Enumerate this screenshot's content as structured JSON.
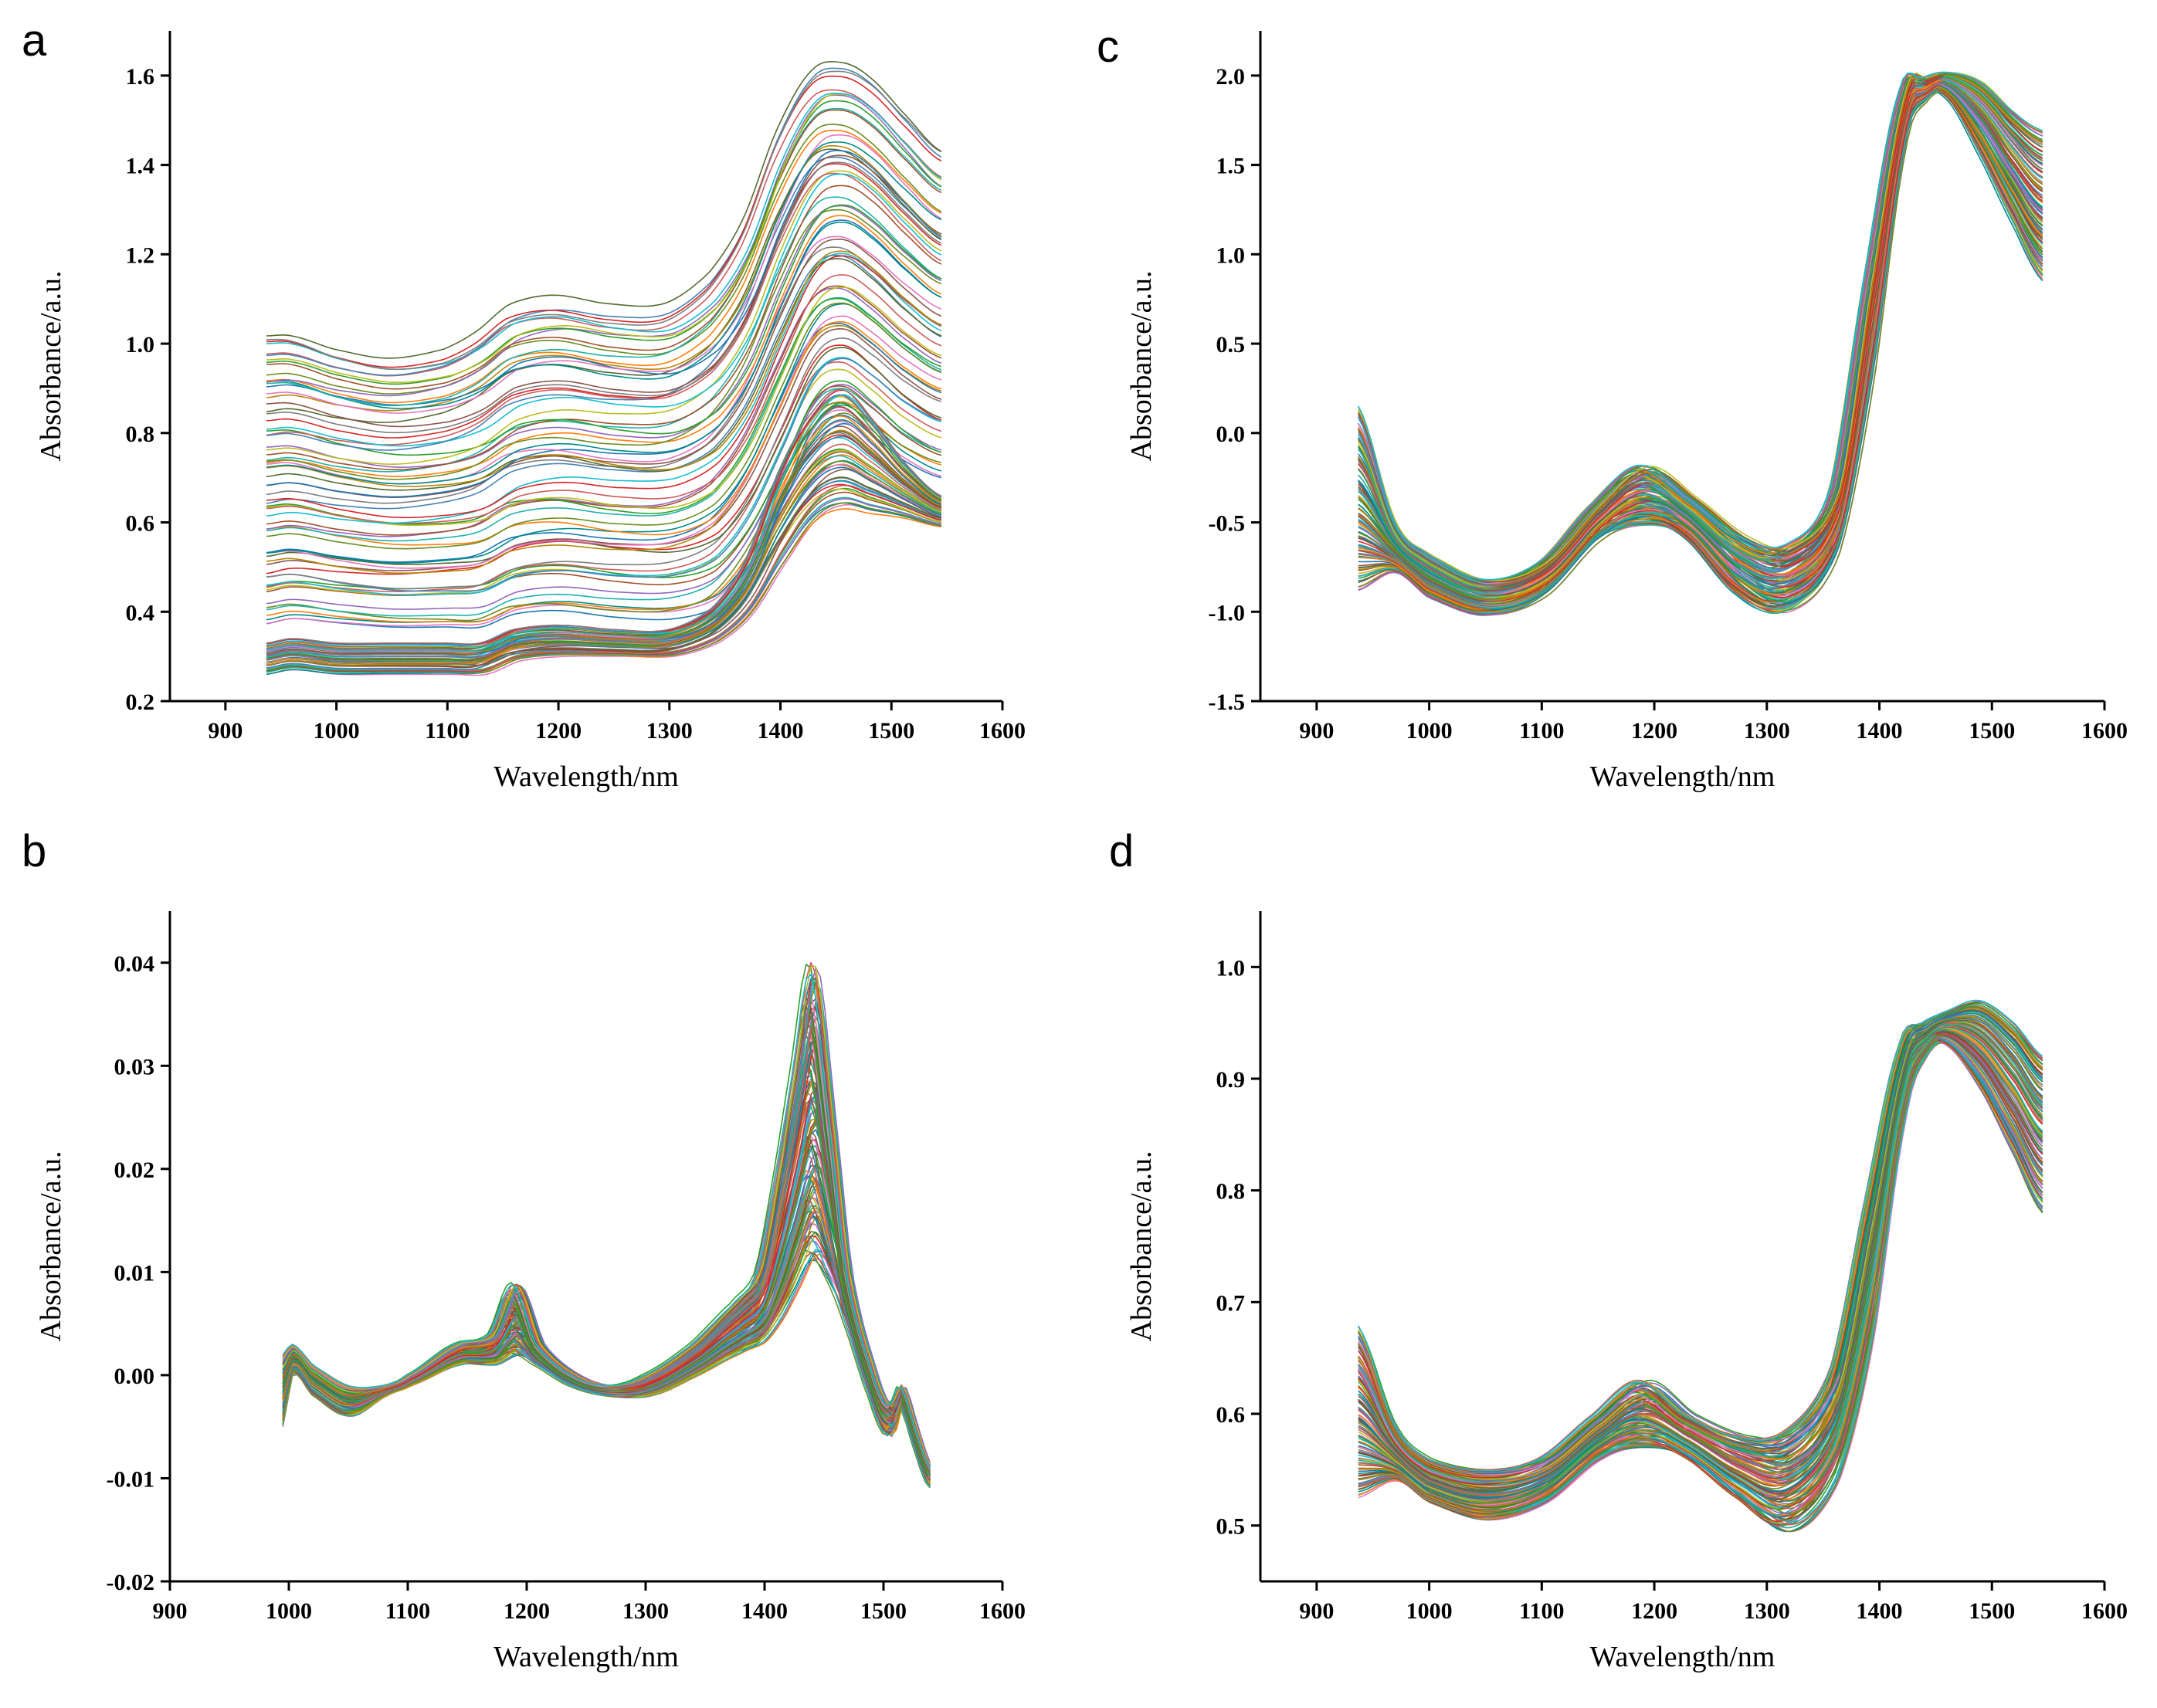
{
  "palette": [
    "#1f77b4",
    "#d62728",
    "#2ca02c",
    "#ff7f0e",
    "#8c564b",
    "#17becf",
    "#9467bd",
    "#e377c2",
    "#7f7f7f",
    "#bcbd22",
    "#6b8e23",
    "#b8860b",
    "#4682b4",
    "#a0522d",
    "#008b8b",
    "#556b2f",
    "#cd5c5c",
    "#20b2aa"
  ],
  "chart_data": [
    {
      "id": "a",
      "panel_label": "a",
      "type": "line",
      "xlabel": "Wavelength/nm",
      "ylabel": "Absorbance/a.u.",
      "xlim": [
        850,
        1600
      ],
      "ylim": [
        0.2,
        1.7
      ],
      "xticks": [
        900,
        1000,
        1100,
        1200,
        1300,
        1400,
        1500,
        1600
      ],
      "yticks": [
        0.2,
        0.4,
        0.6,
        0.8,
        1.0,
        1.2,
        1.4,
        1.6
      ],
      "ytick_labels": [
        "0.2",
        "0.4",
        "0.6",
        "0.8",
        "1.0",
        "1.2",
        "1.4",
        "1.6"
      ],
      "x_range": [
        937,
        1545
      ],
      "spectrum_count": 120,
      "series_groups": [
        {
          "count": 70,
          "anchor_x": [
            937,
            960,
            1000,
            1050,
            1100,
            1130,
            1160,
            1200,
            1250,
            1300,
            1340,
            1370,
            1400,
            1430,
            1455,
            1480,
            1510,
            1545
          ],
          "min_values": [
            0.36,
            0.37,
            0.36,
            0.35,
            0.35,
            0.35,
            0.38,
            0.39,
            0.38,
            0.38,
            0.41,
            0.5,
            0.64,
            0.8,
            0.84,
            0.8,
            0.74,
            0.7
          ],
          "max_values": [
            1.02,
            1.02,
            0.99,
            0.97,
            0.99,
            1.03,
            1.09,
            1.11,
            1.09,
            1.09,
            1.16,
            1.28,
            1.48,
            1.61,
            1.63,
            1.6,
            1.52,
            1.43
          ]
        },
        {
          "count": 50,
          "anchor_x": [
            937,
            960,
            1000,
            1050,
            1100,
            1130,
            1160,
            1200,
            1250,
            1300,
            1340,
            1370,
            1400,
            1430,
            1455,
            1480,
            1510,
            1545
          ],
          "min_values": [
            0.26,
            0.27,
            0.26,
            0.26,
            0.26,
            0.26,
            0.29,
            0.3,
            0.3,
            0.3,
            0.33,
            0.39,
            0.5,
            0.6,
            0.63,
            0.62,
            0.61,
            0.59
          ],
          "max_values": [
            0.33,
            0.34,
            0.33,
            0.33,
            0.33,
            0.33,
            0.36,
            0.37,
            0.36,
            0.36,
            0.41,
            0.52,
            0.72,
            0.85,
            0.9,
            0.84,
            0.74,
            0.66
          ]
        }
      ]
    },
    {
      "id": "b",
      "panel_label": "b",
      "type": "line",
      "xlabel": "Wavelength/nm",
      "ylabel": "Absorbance/a.u.",
      "xlim": [
        900,
        1600
      ],
      "ylim": [
        -0.02,
        0.045
      ],
      "xticks": [
        900,
        1000,
        1100,
        1200,
        1300,
        1400,
        1500,
        1600
      ],
      "yticks": [
        -0.02,
        -0.01,
        0.0,
        0.01,
        0.02,
        0.03,
        0.04
      ],
      "ytick_labels": [
        "-0.02",
        "-0.01",
        "0.00",
        "0.01",
        "0.02",
        "0.03",
        "0.04"
      ],
      "x_range": [
        995,
        1540
      ],
      "spectrum_count": 120,
      "series_groups": [
        {
          "count": 120,
          "anchor_x": [
            995,
            1003,
            1020,
            1050,
            1080,
            1100,
            1140,
            1170,
            1190,
            1210,
            1240,
            1270,
            1300,
            1340,
            1375,
            1395,
            1410,
            1425,
            1440,
            1455,
            1470,
            1490,
            1505,
            1515,
            1530,
            1540
          ],
          "min_values": [
            -0.005,
            0.0,
            -0.002,
            -0.004,
            -0.002,
            -0.001,
            0.001,
            0.001,
            0.002,
            0.001,
            -0.001,
            -0.002,
            -0.002,
            0.0,
            0.002,
            0.003,
            0.005,
            0.008,
            0.011,
            0.009,
            0.005,
            -0.002,
            -0.006,
            -0.003,
            -0.008,
            -0.011
          ],
          "max_values": [
            0.002,
            0.003,
            0.001,
            -0.001,
            -0.001,
            0.0,
            0.003,
            0.004,
            0.009,
            0.003,
            0.0,
            -0.001,
            0.0,
            0.003,
            0.007,
            0.01,
            0.019,
            0.03,
            0.04,
            0.026,
            0.01,
            0.001,
            -0.003,
            -0.001,
            -0.006,
            -0.009
          ]
        }
      ]
    },
    {
      "id": "c",
      "panel_label": "c",
      "type": "line",
      "xlabel": "Wavelength/nm",
      "ylabel": "Absorbance/a.u.",
      "xlim": [
        850,
        1600
      ],
      "ylim": [
        -1.5,
        2.25
      ],
      "xticks": [
        900,
        1000,
        1100,
        1200,
        1300,
        1400,
        1500,
        1600
      ],
      "yticks": [
        -1.5,
        -1.0,
        -0.5,
        0.0,
        0.5,
        1.0,
        1.5,
        2.0
      ],
      "ytick_labels": [
        "-1.5",
        "-1.0",
        "-0.5",
        "0.0",
        "0.5",
        "1.0",
        "1.5",
        "2.0"
      ],
      "x_range": [
        937,
        1545
      ],
      "spectrum_count": 120,
      "series_groups": [
        {
          "count": 120,
          "anchor_x": [
            937,
            970,
            1000,
            1050,
            1100,
            1150,
            1190,
            1230,
            1280,
            1320,
            1360,
            1390,
            1420,
            1440,
            1460,
            1490,
            1520,
            1545
          ],
          "min_values": [
            -0.88,
            -0.78,
            -0.92,
            -1.02,
            -0.92,
            -0.6,
            -0.52,
            -0.58,
            -0.92,
            -1.0,
            -0.7,
            0.2,
            1.55,
            1.85,
            1.88,
            1.55,
            1.15,
            0.85
          ],
          "max_values": [
            0.15,
            -0.5,
            -0.68,
            -0.82,
            -0.72,
            -0.38,
            -0.18,
            -0.35,
            -0.58,
            -0.62,
            -0.3,
            0.9,
            1.92,
            1.99,
            2.02,
            1.97,
            1.8,
            1.7
          ]
        }
      ]
    },
    {
      "id": "d",
      "panel_label": "d",
      "type": "line",
      "xlabel": "Wavelength/nm",
      "ylabel": "Absorbance/a.u.",
      "xlim": [
        850,
        1600
      ],
      "ylim": [
        0.45,
        1.05
      ],
      "xticks": [
        900,
        1000,
        1100,
        1200,
        1300,
        1400,
        1500,
        1600
      ],
      "yticks": [
        0.5,
        0.6,
        0.7,
        0.8,
        0.9,
        1.0
      ],
      "ytick_labels": [
        "0.5",
        "0.6",
        "0.7",
        "0.8",
        "0.9",
        "1.0"
      ],
      "x_range": [
        937,
        1545
      ],
      "spectrum_count": 120,
      "series_groups": [
        {
          "count": 120,
          "anchor_x": [
            937,
            970,
            1000,
            1050,
            1100,
            1150,
            1190,
            1230,
            1280,
            1320,
            1360,
            1390,
            1420,
            1440,
            1460,
            1490,
            1520,
            1545
          ],
          "min_values": [
            0.525,
            0.54,
            0.52,
            0.505,
            0.52,
            0.56,
            0.57,
            0.56,
            0.52,
            0.495,
            0.54,
            0.66,
            0.86,
            0.92,
            0.93,
            0.89,
            0.83,
            0.78
          ],
          "max_values": [
            0.68,
            0.59,
            0.56,
            0.55,
            0.56,
            0.6,
            0.63,
            0.6,
            0.58,
            0.585,
            0.64,
            0.79,
            0.93,
            0.95,
            0.96,
            0.97,
            0.95,
            0.92
          ]
        }
      ]
    }
  ]
}
